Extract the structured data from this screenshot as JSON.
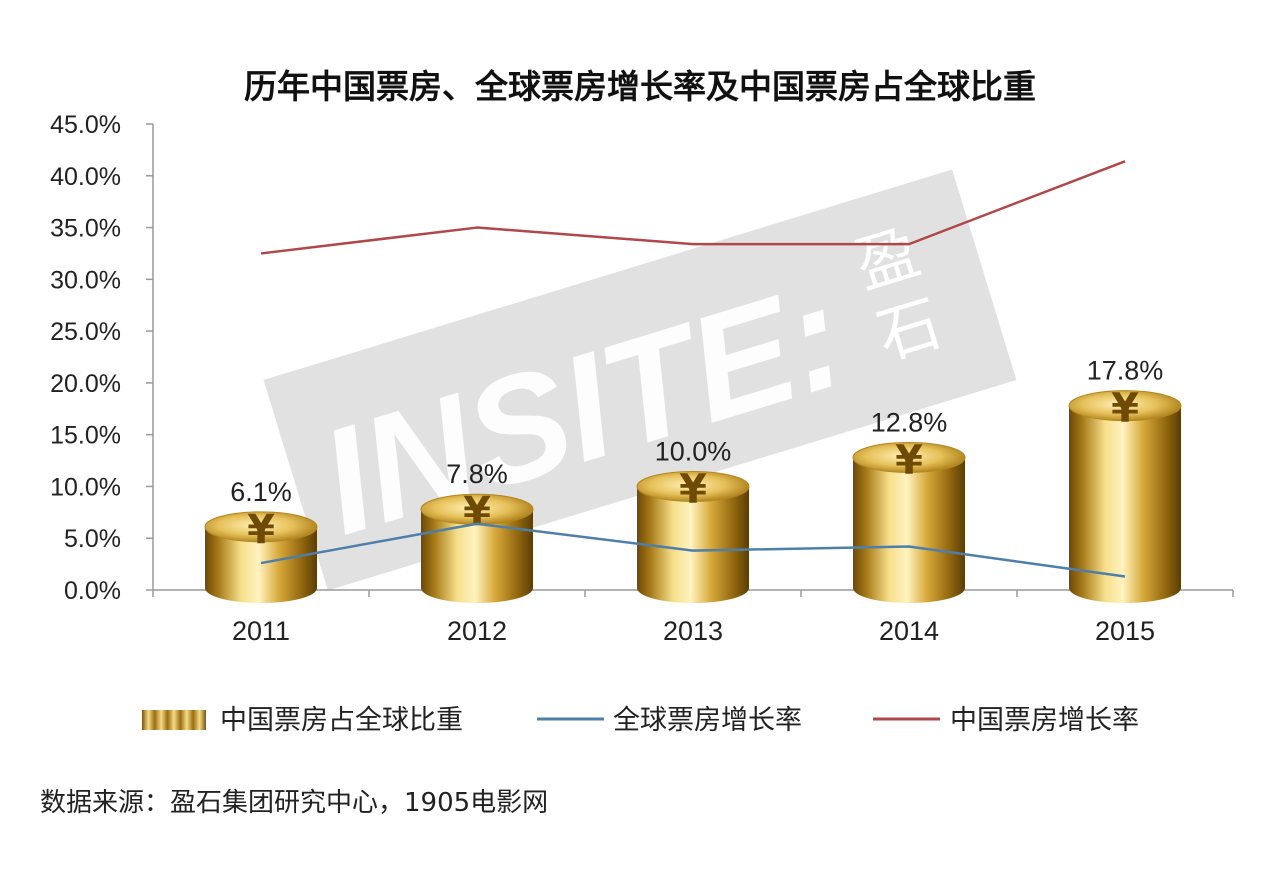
{
  "chart_data": {
    "type": "bar",
    "title": "历年中国票房、全球票房增长率及中国票房占全球比重",
    "categories": [
      "2011",
      "2012",
      "2013",
      "2014",
      "2015"
    ],
    "ylim": [
      0,
      45
    ],
    "yticks": [
      "0.0%",
      "5.0%",
      "10.0%",
      "15.0%",
      "20.0%",
      "25.0%",
      "30.0%",
      "35.0%",
      "40.0%",
      "45.0%"
    ],
    "grid": false,
    "legend_position": "bottom",
    "series": [
      {
        "name": "中国票房占全球比重",
        "type": "bar",
        "values": [
          6.1,
          7.8,
          10.0,
          12.8,
          17.8
        ],
        "labels": [
          "6.1%",
          "7.8%",
          "10.0%",
          "12.8%",
          "17.8%"
        ],
        "color": "#D4A017"
      },
      {
        "name": "全球票房增长率",
        "type": "line",
        "values": [
          2.6,
          6.4,
          3.8,
          4.2,
          1.3
        ],
        "color": "#4F7FA8"
      },
      {
        "name": "中国票房增长率",
        "type": "line",
        "values": [
          32.5,
          35.0,
          33.4,
          33.4,
          41.4
        ],
        "color": "#B0474A"
      }
    ],
    "coin_symbol": "¥",
    "watermark": {
      "brand": "INSITE:",
      "cn": "盈石"
    },
    "source": "数据来源：盈石集团研究中心，1905电影网"
  }
}
